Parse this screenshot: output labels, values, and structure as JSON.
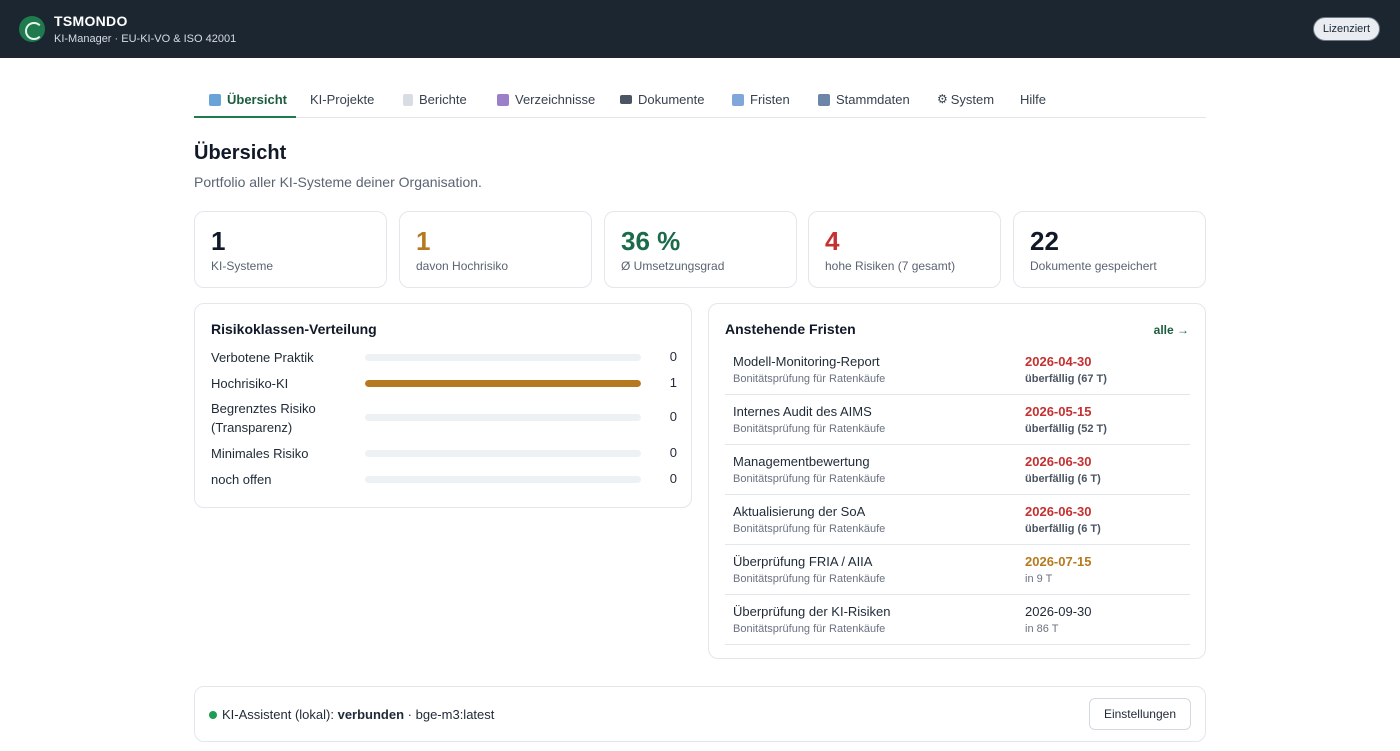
{
  "header": {
    "brand": "TSMONDO",
    "subtitle": "KI-Manager · EU-KI-VO & ISO 42001",
    "license_label": "Lizenziert"
  },
  "tabs": [
    {
      "label": "Übersicht",
      "icon": "bar-chart-icon",
      "active": true
    },
    {
      "label": "KI-Projekte",
      "icon": "",
      "active": false
    },
    {
      "label": "Berichte",
      "icon": "document-icon",
      "active": false
    },
    {
      "label": "Verzeichnisse",
      "icon": "box-icon",
      "active": false
    },
    {
      "label": "Dokumente",
      "icon": "folder-icon",
      "active": false
    },
    {
      "label": "Fristen",
      "icon": "calendar-icon",
      "active": false
    },
    {
      "label": "Stammdaten",
      "icon": "building-icon",
      "active": false
    },
    {
      "label": "System",
      "icon": "gear-icon",
      "active": false
    },
    {
      "label": "Hilfe",
      "icon": "",
      "active": false
    }
  ],
  "page": {
    "title": "Übersicht",
    "subtitle": "Portfolio aller KI-Systeme deiner Organisation."
  },
  "stats": [
    {
      "value": "1",
      "label": "KI-Systeme",
      "color": "#111827"
    },
    {
      "value": "1",
      "label": "davon Hochrisiko",
      "color": "#b7791f"
    },
    {
      "value": "36 %",
      "label": "Ø Umsetzungsgrad",
      "color": "#1b6b4a"
    },
    {
      "value": "4",
      "label": "hohe Risiken (7 gesamt)",
      "color": "#c53030"
    },
    {
      "value": "22",
      "label": "Dokumente gespeichert",
      "color": "#111827"
    }
  ],
  "distribution": {
    "title": "Risikoklassen-Verteilung",
    "bar_color": "#b7791f",
    "max": 1,
    "rows": [
      {
        "label": "Verbotene Praktik",
        "count": 0
      },
      {
        "label": "Hochrisiko-KI",
        "count": 1
      },
      {
        "label": "Begrenztes Risiko (Transparenz)",
        "count": 0
      },
      {
        "label": "Minimales Risiko",
        "count": 0
      },
      {
        "label": "noch offen",
        "count": 0
      }
    ]
  },
  "deadlines": {
    "title": "Anstehende Fristen",
    "all_link": "alle →",
    "colors": {
      "overdue": "#c53030",
      "soon": "#b7791f",
      "normal": "#1f2a37"
    },
    "rows": [
      {
        "name": "Modell-Monitoring-Report",
        "project": "Bonitätsprüfung für Ratenkäufe",
        "date": "2026-04-30",
        "status": "überfällig (67 T)",
        "state": "overdue"
      },
      {
        "name": "Internes Audit des AIMS",
        "project": "Bonitätsprüfung für Ratenkäufe",
        "date": "2026-05-15",
        "status": "überfällig (52 T)",
        "state": "overdue"
      },
      {
        "name": "Managementbewertung",
        "project": "Bonitätsprüfung für Ratenkäufe",
        "date": "2026-06-30",
        "status": "überfällig (6 T)",
        "state": "overdue"
      },
      {
        "name": "Aktualisierung der SoA",
        "project": "Bonitätsprüfung für Ratenkäufe",
        "date": "2026-06-30",
        "status": "überfällig (6 T)",
        "state": "overdue"
      },
      {
        "name": "Überprüfung FRIA / AIIA",
        "project": "Bonitätsprüfung für Ratenkäufe",
        "date": "2026-07-15",
        "status": "in 9 T",
        "state": "soon"
      },
      {
        "name": "Überprüfung der KI-Risiken",
        "project": "Bonitätsprüfung für Ratenkäufe",
        "date": "2026-09-30",
        "status": "in 86 T",
        "state": "normal"
      }
    ]
  },
  "assistant": {
    "prefix": "KI-Assistent (lokal): ",
    "state": "verbunden",
    "model": " · bge-m3:latest",
    "settings_label": "Einstellungen"
  }
}
